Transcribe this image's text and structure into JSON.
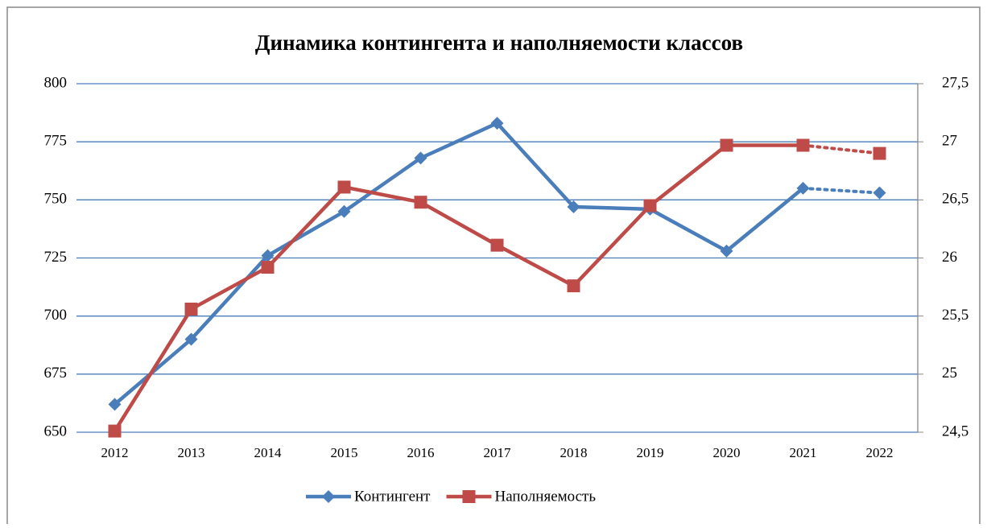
{
  "chart_data": {
    "type": "line",
    "title": "Динамика контингента и наполняемости классов",
    "categories": [
      "2012",
      "2013",
      "2014",
      "2015",
      "2016",
      "2017",
      "2018",
      "2019",
      "2020",
      "2021",
      "2022"
    ],
    "series": [
      {
        "name": "Контингент",
        "color": "#4a7ebb",
        "marker": "diamond",
        "axis": "y",
        "last_segment_dashed": true,
        "values": [
          662,
          690,
          726,
          745,
          768,
          783,
          747,
          746,
          728,
          755,
          753
        ]
      },
      {
        "name": "Наполняемость",
        "color": "#be4b48",
        "marker": "square",
        "axis": "y2",
        "last_segment_dashed": true,
        "values": [
          24.51,
          25.56,
          25.92,
          26.61,
          26.48,
          26.11,
          25.76,
          26.45,
          26.97,
          26.97,
          26.9
        ]
      }
    ],
    "ylim": [
      650,
      800
    ],
    "yticks": [
      650,
      675,
      700,
      725,
      750,
      775,
      800
    ],
    "y2lim": [
      24.5,
      27.5
    ],
    "y2ticks": [
      {
        "value": 24.5,
        "label": "24,5"
      },
      25,
      {
        "value": 25.5,
        "label": "25,5"
      },
      26,
      {
        "value": 26.5,
        "label": "26,5"
      },
      27,
      {
        "value": 27.5,
        "label": "27,5"
      }
    ],
    "grid": true,
    "legend": "bottom"
  }
}
